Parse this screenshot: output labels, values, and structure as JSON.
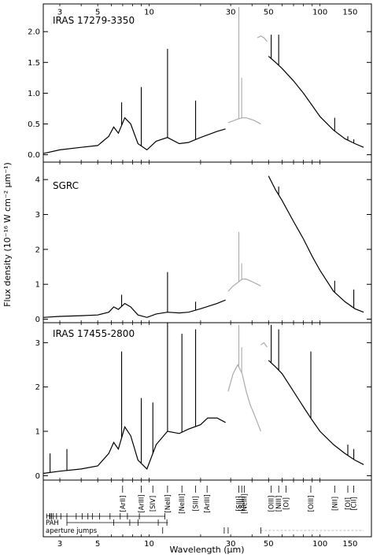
{
  "chart_data": [
    {
      "type": "line",
      "panel": "IRAS 17279-3350",
      "title": "IRAS 17279-3350",
      "ylabel": "Flux density (10⁻¹⁶ W cm⁻² μm⁻¹)",
      "xlabel": "Wavelength (μm)",
      "x_scale": "log",
      "xlim": [
        2.4,
        200
      ],
      "ylim": [
        -0.12,
        2.45
      ],
      "yticks": [
        "0.0",
        "0.5",
        "1.0",
        "1.5",
        "2.0"
      ],
      "ytick_values": [
        0,
        0.5,
        1,
        1.5,
        2
      ],
      "series": [
        {
          "segment": "SWS",
          "color": "#000000",
          "x": [
            2.4,
            3,
            4,
            5,
            5.8,
            6.2,
            6.6,
            7.2,
            7.8,
            8.6,
            9.7,
            11,
            12.8,
            15,
            17,
            20,
            25,
            28
          ],
          "y": [
            0.02,
            0.08,
            0.12,
            0.15,
            0.3,
            0.45,
            0.35,
            0.6,
            0.5,
            0.18,
            0.08,
            0.22,
            0.28,
            0.18,
            0.2,
            0.28,
            0.38,
            0.42
          ],
          "lines": [
            {
              "x": 6.9,
              "y": 0.85
            },
            {
              "x": 8.99,
              "y": 1.1
            },
            {
              "x": 12.81,
              "y": 1.72
            },
            {
              "x": 18.7,
              "y": 0.88
            }
          ]
        },
        {
          "segment": "SWS-aperture",
          "color": "#aaaaaa",
          "x": [
            29,
            31,
            33,
            35,
            37,
            39,
            41,
            43,
            45
          ],
          "y": [
            0.52,
            0.55,
            0.58,
            0.6,
            0.6,
            0.58,
            0.56,
            0.53,
            0.5
          ],
          "lines": [
            {
              "x": 33.5,
              "y": 2.4
            },
            {
              "x": 34.8,
              "y": 1.25
            }
          ]
        },
        {
          "segment": "LWS-grey",
          "color": "#aaaaaa",
          "x": [
            43,
            45,
            47,
            49
          ],
          "y": [
            1.9,
            1.93,
            1.9,
            1.84
          ]
        },
        {
          "segment": "LWS",
          "color": "#000000",
          "x": [
            50,
            55,
            60,
            70,
            80,
            90,
            100,
            120,
            140,
            160,
            180
          ],
          "y": [
            1.6,
            1.5,
            1.4,
            1.2,
            1.0,
            0.8,
            0.62,
            0.4,
            0.26,
            0.18,
            0.12
          ],
          "lines": [
            {
              "x": 51.8,
              "y": 1.95
            },
            {
              "x": 57.3,
              "y": 1.95
            },
            {
              "x": 121.9,
              "y": 0.6
            },
            {
              "x": 145.5,
              "y": 0.3
            },
            {
              "x": 157.7,
              "y": 0.25
            }
          ]
        }
      ]
    },
    {
      "type": "line",
      "panel": "SGRC",
      "title": "SGRC",
      "x_scale": "log",
      "xlim": [
        2.4,
        200
      ],
      "ylim": [
        -0.1,
        4.5
      ],
      "yticks": [
        "0",
        "1",
        "2",
        "3",
        "4"
      ],
      "ytick_values": [
        0,
        1,
        2,
        3,
        4
      ],
      "series": [
        {
          "segment": "SWS",
          "color": "#000000",
          "x": [
            2.4,
            3,
            4,
            5,
            5.8,
            6.2,
            6.6,
            7.2,
            7.8,
            8.6,
            9.7,
            11,
            12.8,
            15,
            17,
            20,
            25,
            28
          ],
          "y": [
            0.05,
            0.08,
            0.1,
            0.12,
            0.2,
            0.35,
            0.28,
            0.45,
            0.35,
            0.12,
            0.05,
            0.15,
            0.2,
            0.18,
            0.2,
            0.3,
            0.45,
            0.55
          ],
          "lines": [
            {
              "x": 6.9,
              "y": 0.7
            },
            {
              "x": 12.81,
              "y": 1.35
            },
            {
              "x": 18.7,
              "y": 0.5
            }
          ]
        },
        {
          "segment": "SWS-aperture",
          "color": "#aaaaaa",
          "x": [
            29,
            31,
            33,
            35,
            37,
            39,
            41,
            43,
            45
          ],
          "y": [
            0.8,
            0.95,
            1.05,
            1.15,
            1.15,
            1.1,
            1.05,
            1.0,
            0.95
          ],
          "lines": [
            {
              "x": 33.5,
              "y": 2.5
            },
            {
              "x": 34.8,
              "y": 1.6
            }
          ]
        },
        {
          "segment": "LWS",
          "color": "#000000",
          "x": [
            50,
            55,
            60,
            70,
            80,
            90,
            100,
            120,
            140,
            160,
            180
          ],
          "y": [
            4.1,
            3.7,
            3.4,
            2.8,
            2.3,
            1.8,
            1.4,
            0.8,
            0.5,
            0.3,
            0.2
          ],
          "lines": [
            {
              "x": 57.3,
              "y": 3.8
            },
            {
              "x": 121.9,
              "y": 1.1
            },
            {
              "x": 157.7,
              "y": 0.85
            }
          ]
        }
      ]
    },
    {
      "type": "line",
      "panel": "IRAS 17455-2800",
      "title": "IRAS 17455-2800",
      "x_scale": "log",
      "xlim": [
        2.4,
        200
      ],
      "ylim": [
        -0.1,
        3.45
      ],
      "yticks": [
        "0",
        "1",
        "2",
        "3"
      ],
      "ytick_values": [
        0,
        1,
        2,
        3
      ],
      "series": [
        {
          "segment": "SWS",
          "color": "#000000",
          "x": [
            2.4,
            3,
            4,
            5,
            5.8,
            6.2,
            6.6,
            7.2,
            7.8,
            8.6,
            9.7,
            11,
            12.8,
            15,
            17,
            20,
            22,
            25,
            28
          ],
          "y": [
            0.05,
            0.1,
            0.15,
            0.22,
            0.5,
            0.75,
            0.6,
            1.1,
            0.9,
            0.35,
            0.15,
            0.7,
            1.0,
            0.95,
            1.05,
            1.15,
            1.3,
            1.3,
            1.2
          ],
          "lines": [
            {
              "x": 2.63,
              "y": 0.5
            },
            {
              "x": 3.3,
              "y": 0.6
            },
            {
              "x": 6.9,
              "y": 2.8
            },
            {
              "x": 8.99,
              "y": 1.75
            },
            {
              "x": 10.51,
              "y": 1.65
            },
            {
              "x": 12.81,
              "y": 3.45
            },
            {
              "x": 15.55,
              "y": 3.2
            },
            {
              "x": 18.7,
              "y": 3.3
            }
          ]
        },
        {
          "segment": "SWS-aperture",
          "color": "#aaaaaa",
          "x": [
            29,
            31,
            33,
            35,
            37,
            39,
            41,
            43,
            45
          ],
          "y": [
            1.9,
            2.3,
            2.5,
            2.3,
            1.9,
            1.6,
            1.4,
            1.2,
            1.0
          ],
          "lines": [
            {
              "x": 33.5,
              "y": 3.4
            },
            {
              "x": 34.8,
              "y": 2.9
            }
          ]
        },
        {
          "segment": "LWS-grey",
          "color": "#aaaaaa",
          "x": [
            45,
            47,
            49
          ],
          "y": [
            2.95,
            3.0,
            2.9
          ]
        },
        {
          "segment": "LWS",
          "color": "#000000",
          "x": [
            50,
            55,
            60,
            70,
            80,
            90,
            100,
            120,
            140,
            160,
            180
          ],
          "y": [
            2.6,
            2.45,
            2.3,
            1.9,
            1.55,
            1.25,
            1.0,
            0.7,
            0.5,
            0.35,
            0.25
          ],
          "lines": [
            {
              "x": 51.8,
              "y": 3.4
            },
            {
              "x": 57.3,
              "y": 3.3
            },
            {
              "x": 88.4,
              "y": 2.8
            },
            {
              "x": 145.5,
              "y": 0.7
            },
            {
              "x": 157.7,
              "y": 0.6
            }
          ]
        }
      ]
    }
  ],
  "axes": {
    "ylabel": "Flux density (10⁻¹⁶ W cm⁻² μm⁻¹)",
    "xlabel": "Wavelength (μm)",
    "xticks_top": [
      {
        "x": 3,
        "label": "3"
      },
      {
        "x": 5,
        "label": "5"
      },
      {
        "x": 10,
        "label": "10"
      },
      {
        "x": 30,
        "label": "30"
      },
      {
        "x": 50,
        "label": "50"
      },
      {
        "x": 100,
        "label": "100"
      },
      {
        "x": 150,
        "label": "150"
      }
    ],
    "xticks_bottom": [
      {
        "x": 3,
        "label": "3"
      },
      {
        "x": 5,
        "label": "5"
      },
      {
        "x": 10,
        "label": "10"
      },
      {
        "x": 30,
        "label": "30"
      },
      {
        "x": 50,
        "label": "50"
      },
      {
        "x": 100,
        "label": "100"
      },
      {
        "x": 150,
        "label": "150"
      }
    ]
  },
  "line_ids": {
    "labels": [
      {
        "x": 6.99,
        "text": "[ArII]"
      },
      {
        "x": 8.99,
        "text": "[ArIII]"
      },
      {
        "x": 10.51,
        "text": "[SIV]"
      },
      {
        "x": 12.81,
        "text": "[NeII]"
      },
      {
        "x": 15.55,
        "text": "[NeIII]"
      },
      {
        "x": 18.71,
        "text": "[SIII]"
      },
      {
        "x": 21.83,
        "text": "[ArIII]"
      },
      {
        "x": 33.48,
        "text": "[SIII]"
      },
      {
        "x": 34.82,
        "text": "[SiII]"
      },
      {
        "x": 36.01,
        "text": "[NeIII]"
      },
      {
        "x": 51.81,
        "text": "[OIII]"
      },
      {
        "x": 57.32,
        "text": "[NIII]"
      },
      {
        "x": 63.18,
        "text": "[OI]"
      },
      {
        "x": 88.36,
        "text": "[OIII]"
      },
      {
        "x": 121.9,
        "text": "[NII]"
      },
      {
        "x": 145.5,
        "text": "[OI]"
      },
      {
        "x": 157.7,
        "text": "[CII]"
      }
    ],
    "rows": [
      {
        "label": "HI",
        "ticks": [
          2.63,
          2.68,
          2.75,
          2.87,
          3.04,
          3.3,
          3.74,
          4.05,
          4.38,
          4.65,
          5.13,
          5.9,
          6.77,
          7.46,
          8.76,
          12.37
        ],
        "bracket": [
          2.6,
          12.4
        ]
      },
      {
        "label": "PAH",
        "ticks": [
          3.3,
          6.2,
          7.7,
          8.6,
          11.3,
          12.7
        ],
        "bracket": [
          3.3,
          12.9
        ]
      },
      {
        "label": "aperture jumps",
        "ticks": [
          12.0,
          27.5,
          29.0,
          45.0
        ],
        "bracket": [
          45.0,
          180
        ]
      }
    ]
  }
}
